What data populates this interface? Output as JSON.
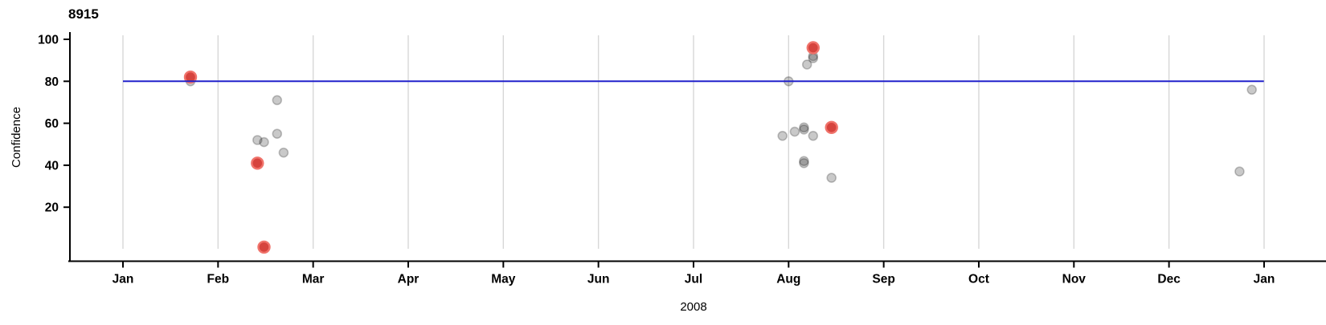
{
  "title": "8915",
  "axes": {
    "y": {
      "label": "Confidence",
      "tick_values": [
        100,
        80,
        60,
        40,
        20
      ]
    },
    "x": {
      "label": "2008",
      "months": [
        "Jan",
        "Feb",
        "Mar",
        "Apr",
        "May",
        "Jun",
        "Jul",
        "Aug",
        "Sep",
        "Oct",
        "Nov",
        "Dec",
        "Jan"
      ]
    }
  },
  "colors": {
    "reference_line": "#2222cc",
    "grid_line": "#d7d7d7",
    "axis": "#000000",
    "normal_point_fill": "rgba(0,0,0,0.21)",
    "normal_point_stroke": "rgba(0,0,0,0.22)",
    "highlight_point_fill": "#d6443e",
    "highlight_point_stroke": "#f0736b"
  },
  "chart_data": {
    "type": "scatter",
    "title": "8915",
    "xlabel": "2008",
    "ylabel": "Confidence",
    "x_range_months": [
      "2008-01",
      "2009-01"
    ],
    "ylim": [
      0,
      100
    ],
    "y_ticks": [
      20,
      40,
      60,
      80,
      100
    ],
    "grid": "vertical gridline at each month start",
    "legend": "none",
    "reference_line": {
      "y": 80,
      "color": "#2222cc"
    },
    "series": [
      {
        "name": "normal",
        "marker": "small-gray-circle",
        "color": "#c9c9c9",
        "points": [
          {
            "date": "2008-01-23",
            "confidence": 80
          },
          {
            "date": "2008-02-13",
            "confidence": 52
          },
          {
            "date": "2008-02-15",
            "confidence": 51
          },
          {
            "date": "2008-02-19",
            "confidence": 55
          },
          {
            "date": "2008-02-19",
            "confidence": 71
          },
          {
            "date": "2008-02-21",
            "confidence": 46
          },
          {
            "date": "2008-07-30",
            "confidence": 54
          },
          {
            "date": "2008-08-01",
            "confidence": 80
          },
          {
            "date": "2008-08-03",
            "confidence": 56
          },
          {
            "date": "2008-08-06",
            "confidence": 58
          },
          {
            "date": "2008-08-06",
            "confidence": 57
          },
          {
            "date": "2008-08-06",
            "confidence": 42
          },
          {
            "date": "2008-08-06",
            "confidence": 41
          },
          {
            "date": "2008-08-07",
            "confidence": 88
          },
          {
            "date": "2008-08-09",
            "confidence": 92
          },
          {
            "date": "2008-08-09",
            "confidence": 91
          },
          {
            "date": "2008-08-09",
            "confidence": 54
          },
          {
            "date": "2008-08-15",
            "confidence": 34
          },
          {
            "date": "2008-12-24",
            "confidence": 37
          },
          {
            "date": "2008-12-28",
            "confidence": 76
          }
        ]
      },
      {
        "name": "highlighted",
        "marker": "large-red-circle",
        "color": "#d6443e",
        "points": [
          {
            "date": "2008-01-23",
            "confidence": 82
          },
          {
            "date": "2008-02-13",
            "confidence": 41
          },
          {
            "date": "2008-02-15",
            "confidence": 1
          },
          {
            "date": "2008-08-09",
            "confidence": 96
          },
          {
            "date": "2008-08-15",
            "confidence": 58
          }
        ]
      }
    ]
  }
}
